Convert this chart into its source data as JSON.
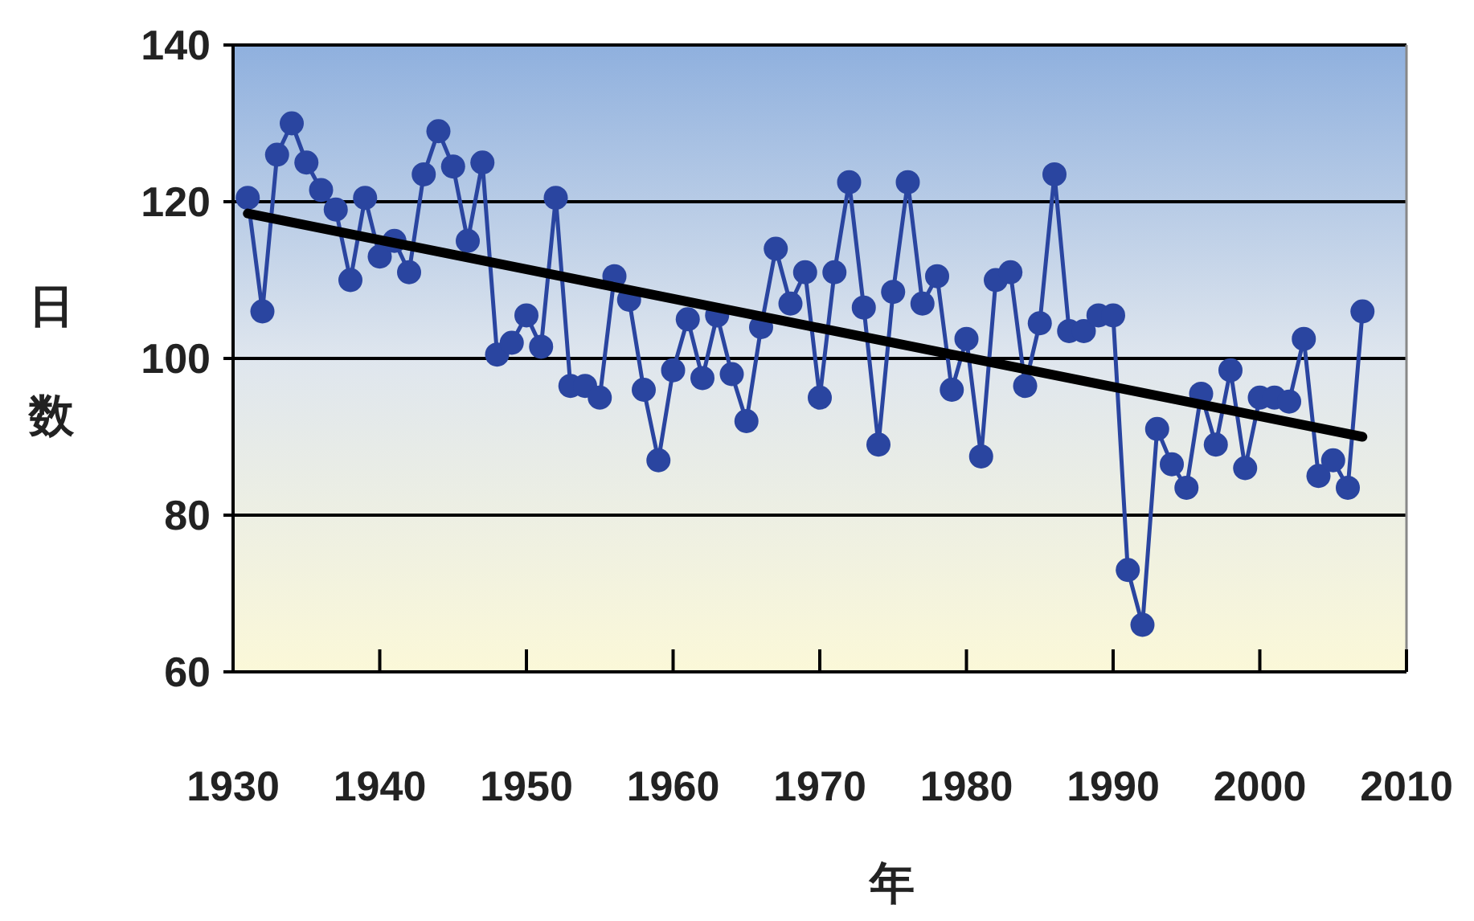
{
  "chart_data": {
    "type": "line",
    "xlabel": "年",
    "ylabel": "日数",
    "xlim": [
      1930,
      2010
    ],
    "xticks": [
      1930,
      1940,
      1950,
      1960,
      1970,
      1980,
      1990,
      2000,
      2010
    ],
    "ylim": [
      60,
      140
    ],
    "yticks": [
      60,
      80,
      100,
      120,
      140
    ],
    "grid": "y",
    "series": [
      {
        "color": "#2a45a0",
        "marker": "circle",
        "x": [
          1931,
          1932,
          1933,
          1934,
          1935,
          1936,
          1937,
          1938,
          1939,
          1940,
          1941,
          1942,
          1943,
          1944,
          1945,
          1946,
          1947,
          1948,
          1949,
          1950,
          1951,
          1952,
          1953,
          1954,
          1955,
          1956,
          1957,
          1958,
          1959,
          1960,
          1961,
          1962,
          1963,
          1964,
          1965,
          1966,
          1967,
          1968,
          1969,
          1970,
          1971,
          1972,
          1973,
          1974,
          1975,
          1976,
          1977,
          1978,
          1979,
          1980,
          1981,
          1982,
          1983,
          1984,
          1985,
          1986,
          1987,
          1988,
          1989,
          1990,
          1991,
          1992,
          1993,
          1994,
          1995,
          1996,
          1997,
          1998,
          1999,
          2000,
          2001,
          2002,
          2003,
          2004,
          2005,
          2006,
          2007
        ],
        "values": [
          120.5,
          106,
          126,
          130,
          125,
          121.5,
          119,
          110,
          120.5,
          113,
          115,
          111,
          123.5,
          129,
          124.5,
          115,
          125,
          100.5,
          102,
          105.5,
          101.5,
          120.5,
          96.5,
          96.5,
          95,
          110.5,
          107.5,
          96,
          87,
          98.5,
          105,
          97.5,
          105.5,
          98,
          92,
          104,
          114,
          107,
          111,
          95,
          111,
          122.5,
          106.5,
          89,
          108.5,
          122.5,
          107,
          110.5,
          96,
          102.5,
          87.5,
          110,
          111,
          96.5,
          104.5,
          123.5,
          103.5,
          103.5,
          105.5,
          105.5,
          73,
          66,
          91,
          86.5,
          83.5,
          95.5,
          89,
          98.5,
          86,
          95,
          95,
          94.5,
          102.5,
          85,
          87,
          83.5,
          106
        ]
      },
      {
        "color": "#000000",
        "marker": "none",
        "x": [
          1931,
          2007
        ],
        "values": [
          118.5,
          90
        ]
      }
    ]
  }
}
